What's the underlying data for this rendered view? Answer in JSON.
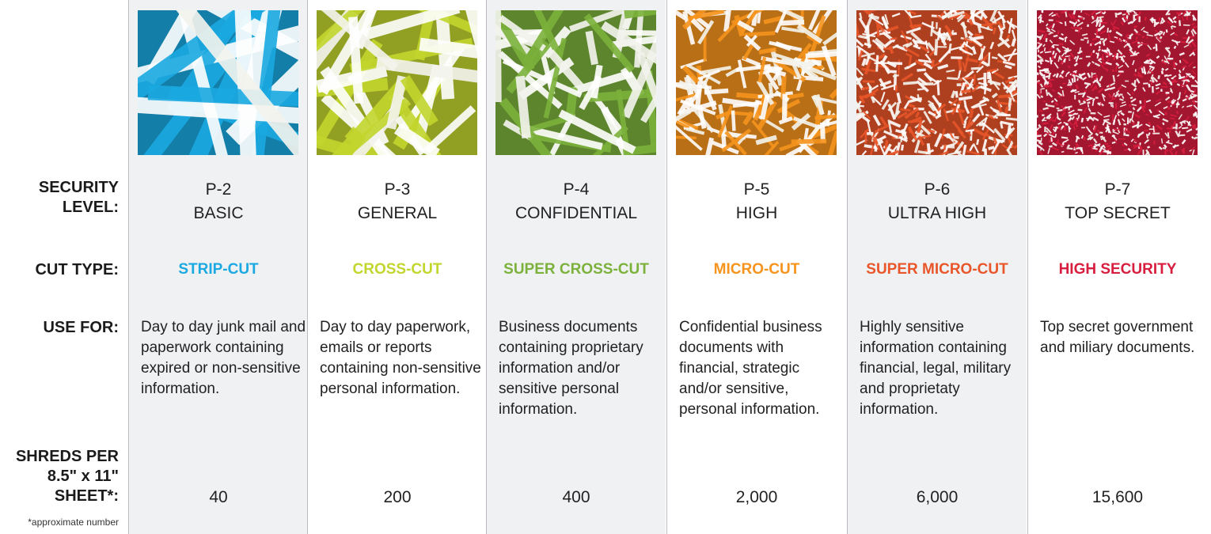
{
  "rows": {
    "security_level": "SECURITY LEVEL:",
    "cut_type": "CUT TYPE:",
    "use_for": "USE FOR:",
    "shreds": "SHREDS PER 8.5\" x 11\" SHEET*:"
  },
  "footnote": "*approximate number",
  "columns": [
    {
      "level": "P-2",
      "name": "BASIC",
      "cut_type": "STRIP-CUT",
      "color": "#1aa9e1",
      "use_for": "Day to day junk mail and paperwork containing expired or non-sensitive information.",
      "shreds": "40"
    },
    {
      "level": "P-3",
      "name": "GENERAL",
      "cut_type": "CROSS-CUT",
      "color": "#c2d62e",
      "use_for": "Day to day paperwork, emails or reports containing non-sensitive personal information.",
      "shreds": "200"
    },
    {
      "level": "P-4",
      "name": "CONFIDENTIAL",
      "cut_type": "SUPER CROSS-CUT",
      "color": "#7cb23c",
      "use_for": "Business documents containing proprietary information and/or sensitive personal information.",
      "shreds": "400"
    },
    {
      "level": "P-5",
      "name": "HIGH",
      "cut_type": "MICRO-CUT",
      "color": "#f7941d",
      "use_for": "Confidential business documents with financial, strategic and/or sensitive, personal information.",
      "shreds": "2,000"
    },
    {
      "level": "P-6",
      "name": "ULTRA HIGH",
      "cut_type": "SUPER MICRO-CUT",
      "color": "#e8562a",
      "use_for": "Highly sensitive information containing financial, legal, military and proprietaty information.",
      "shreds": "6,000"
    },
    {
      "level": "P-7",
      "name": "TOP SECRET",
      "cut_type": "HIGH SECURITY",
      "color": "#d81e3f",
      "use_for": "Top secret government and miliary documents.",
      "shreds": "15,600"
    }
  ]
}
